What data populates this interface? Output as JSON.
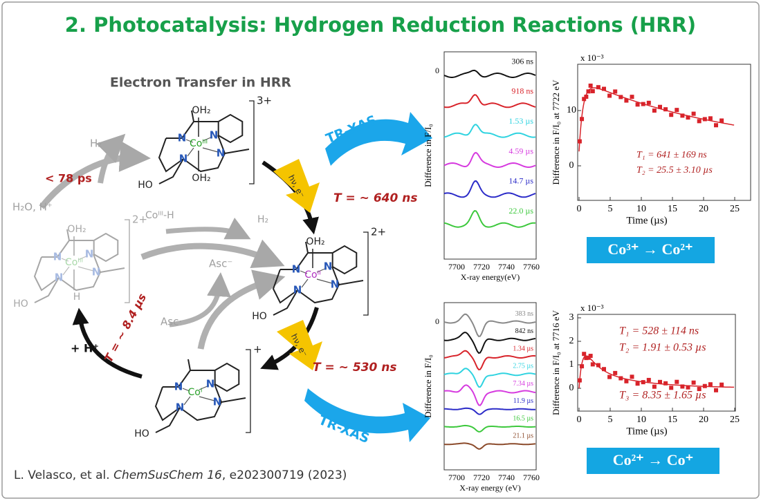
{
  "title": "2. Photocatalysis: Hydrogen Reduction Reactions (HRR)",
  "scheme": {
    "heading": "Electron Transfer in HRR",
    "molecules": [
      {
        "axial": [
          "OH₂",
          "OH₂"
        ],
        "metal": "Coᴵᴵᴵ",
        "charge": "3+",
        "donor": "N",
        "arm": "HO"
      },
      {
        "axial": [
          "OH₂",
          "H"
        ],
        "metal": "Coᴵᴵᴵ",
        "charge": "2+",
        "donor": "N",
        "arm": "HO"
      },
      {
        "axial": [
          "OH₂"
        ],
        "metal": "Coᴵᴵ",
        "charge": "2+",
        "donor": "N",
        "arm": "HO"
      },
      {
        "axial": [],
        "metal": "Coᴵ",
        "charge": "+",
        "donor": "N",
        "arm": "HO"
      }
    ],
    "labels": {
      "h2_top": "H₂",
      "h2o": "H₂O, H⁺",
      "lt78": "< 78 ps",
      "coh": "Coᴵᴵᴵ-H",
      "h2_mid": "H₂",
      "asc_minus": "Asc⁻",
      "asc_rad": "Asc·",
      "hv1": "hν, e⁻",
      "hv2": "hν, e⁻",
      "t640": "T = ~ 640 ns",
      "t530": "T = ~ 530 ns",
      "t84": "T = ~ 8.4 µs",
      "proton": "+ H⁺",
      "trxas1": "TR-XAS",
      "trxas2": "TR-XAS"
    }
  },
  "citation": {
    "authors": "L. Velasco, et al. ",
    "journal": "ChemSusChem 16",
    "rest": ", e202300719 (2023)"
  },
  "panels": [
    {
      "spectra": {
        "zero": "0",
        "ylabel": "Difference in F/I₀",
        "xlabel": "X-ray energy(eV)",
        "xticks": [
          "7700",
          "7720",
          "7740",
          "7760"
        ],
        "traces": [
          {
            "label": "306 ns",
            "color": "#111111"
          },
          {
            "label": "918 ns",
            "color": "#d8232a"
          },
          {
            "label": "1.53 µs",
            "color": "#2fd3e0"
          },
          {
            "label": "4.59 µs",
            "color": "#d63adf"
          },
          {
            "label": "14.7 µs",
            "color": "#2b2bc8"
          },
          {
            "label": "22.0 µs",
            "color": "#3cc83c"
          }
        ]
      },
      "kinetics": {
        "multiplier": "x 10⁻³",
        "ylabel": "Difference in F/I₀ at 7722 eV",
        "xlabel": "Time (µs)",
        "xticks": [
          "0",
          "5",
          "10",
          "15",
          "20",
          "25"
        ],
        "yticks": [
          "0",
          "10"
        ],
        "fits": [
          "T₁ = 641 ± 169 ns",
          "T₂ = 25.5 ± 3.10 µs"
        ]
      },
      "transition": "Co³⁺ → Co²⁺"
    },
    {
      "spectra": {
        "zero": "0",
        "ylabel": "Difference in F/I₀",
        "xlabel": "X-ray energy (eV)",
        "xticks": [
          "7700",
          "7720",
          "7740",
          "7760"
        ],
        "traces": [
          {
            "label": "383 ns",
            "color": "#888888"
          },
          {
            "label": "842 ns",
            "color": "#111111"
          },
          {
            "label": "1.34 µs",
            "color": "#d8232a"
          },
          {
            "label": "2.75 µs",
            "color": "#2fd3e0"
          },
          {
            "label": "7.34 µs",
            "color": "#d63adf"
          },
          {
            "label": "11.9 µs",
            "color": "#2b2bc8"
          },
          {
            "label": "16.5 µs",
            "color": "#3cc83c"
          },
          {
            "label": "21.1 µs",
            "color": "#8b4a2a"
          }
        ]
      },
      "kinetics": {
        "multiplier": "x 10⁻³",
        "ylabel": "Difference in F/I₀ at 7716 eV",
        "xlabel": "Time (µs)",
        "xticks": [
          "0",
          "5",
          "10",
          "15",
          "20",
          "25"
        ],
        "yticks": [
          "0",
          "1",
          "2",
          "3"
        ],
        "fits": [
          "T₁ = 528 ± 114 ns",
          "T₂ = 1.91 ± 0.53 µs",
          "T₃ = 8.35 ± 1.65 µs"
        ]
      },
      "transition": "Co²⁺ → Co⁺"
    }
  ]
}
